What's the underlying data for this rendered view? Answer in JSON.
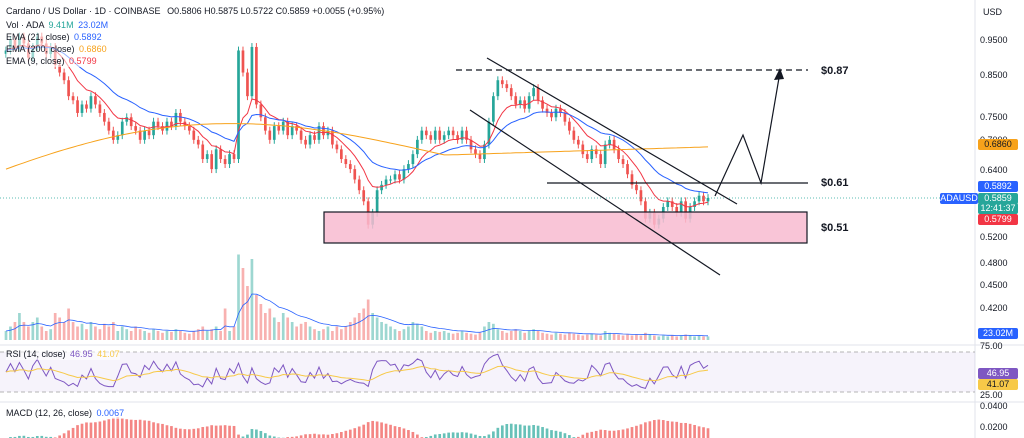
{
  "header": {
    "title": "Cardano / US Dollar · 1D · COINBASE",
    "ohlc": "O0.5806 H0.5875 L0.5722 C0.5859 +0.0055 (+0.95%)",
    "currency": "USD"
  },
  "legends": {
    "vol": {
      "label": "Vol · ADA",
      "v1": "9.41M",
      "v2": "23.02M"
    },
    "ema21": {
      "label": "EMA (21, close)",
      "value": "0.5892"
    },
    "ema200": {
      "label": "EMA (200, close)",
      "value": "0.6860"
    },
    "ema9": {
      "label": "EMA (9, close)",
      "value": "0.5799"
    },
    "rsi": {
      "label": "RSI (14, close)",
      "v1": "46.95",
      "v2": "41.07"
    },
    "macd": {
      "label": "MACD (12, 26, close)",
      "value": "0.0067"
    }
  },
  "price_axis": {
    "ticks": [
      "0.9500",
      "0.8500",
      "0.7500",
      "0.7000",
      "0.6400",
      "0.5200",
      "0.4800",
      "0.4500",
      "0.4200"
    ]
  },
  "price_tags": {
    "ema200": {
      "text": "0.6860",
      "color": "#f7a21b"
    },
    "ema21": {
      "text": "0.5892",
      "color": "#2962ff"
    },
    "symbol": {
      "text": "ADAUSD",
      "color": "#2962ff"
    },
    "last": {
      "text": "0.5859",
      "color": "#26a69a"
    },
    "countdown": {
      "text": "12:41:37",
      "color": "#26a69a"
    },
    "ema9": {
      "text": "0.5799",
      "color": "#f23645"
    },
    "vol": {
      "text": "23.02M",
      "color": "#2962ff"
    }
  },
  "rsi_axis": {
    "ticks": [
      "75.00",
      "25.00"
    ],
    "tags": {
      "rsi": "46.95",
      "ma": "41.07"
    }
  },
  "macd_axis": {
    "ticks": [
      "0.0400",
      "0.0200"
    ]
  },
  "annotations": {
    "level_087": "$0.87",
    "level_061": "$0.61",
    "level_051": "$0.51"
  },
  "chart_data": {
    "type": "candlestick",
    "title": "Cardano / US Dollar · 1D · COINBASE",
    "ylim": [
      0.4,
      1.0
    ],
    "y_scale": "log",
    "last_close": 0.5859,
    "ema200_last": 0.686,
    "ema21_last": 0.5892,
    "ema9_last": 0.5799,
    "close": [
      0.92,
      0.95,
      0.93,
      0.96,
      0.94,
      0.9,
      0.93,
      0.96,
      0.94,
      0.91,
      0.93,
      0.88,
      0.86,
      0.84,
      0.8,
      0.79,
      0.76,
      0.78,
      0.77,
      0.8,
      0.78,
      0.76,
      0.74,
      0.72,
      0.7,
      0.71,
      0.74,
      0.75,
      0.73,
      0.72,
      0.7,
      0.72,
      0.71,
      0.74,
      0.73,
      0.72,
      0.74,
      0.73,
      0.76,
      0.74,
      0.73,
      0.72,
      0.7,
      0.69,
      0.66,
      0.67,
      0.64,
      0.68,
      0.66,
      0.65,
      0.67,
      0.66,
      0.92,
      0.86,
      0.8,
      0.93,
      0.78,
      0.75,
      0.72,
      0.7,
      0.73,
      0.72,
      0.74,
      0.71,
      0.73,
      0.72,
      0.7,
      0.69,
      0.71,
      0.7,
      0.73,
      0.71,
      0.72,
      0.69,
      0.68,
      0.66,
      0.65,
      0.64,
      0.62,
      0.6,
      0.58,
      0.54,
      0.56,
      0.6,
      0.61,
      0.62,
      0.62,
      0.63,
      0.62,
      0.64,
      0.65,
      0.67,
      0.7,
      0.72,
      0.71,
      0.7,
      0.72,
      0.7,
      0.71,
      0.72,
      0.71,
      0.7,
      0.72,
      0.7,
      0.68,
      0.67,
      0.66,
      0.69,
      0.74,
      0.8,
      0.84,
      0.83,
      0.82,
      0.8,
      0.78,
      0.79,
      0.77,
      0.8,
      0.82,
      0.79,
      0.77,
      0.76,
      0.75,
      0.77,
      0.76,
      0.74,
      0.72,
      0.7,
      0.69,
      0.67,
      0.66,
      0.68,
      0.67,
      0.65,
      0.69,
      0.7,
      0.68,
      0.66,
      0.65,
      0.63,
      0.61,
      0.6,
      0.58,
      0.55,
      0.56,
      0.54,
      0.55,
      0.57,
      0.58,
      0.57,
      0.56,
      0.58,
      0.55,
      0.57,
      0.58,
      0.59,
      0.58,
      0.5859
    ],
    "volume_relative": [
      0.1,
      0.15,
      0.2,
      0.3,
      0.2,
      0.15,
      0.2,
      0.25,
      0.15,
      0.1,
      0.12,
      0.3,
      0.25,
      0.2,
      0.35,
      0.2,
      0.15,
      0.18,
      0.12,
      0.2,
      0.15,
      0.12,
      0.18,
      0.15,
      0.2,
      0.1,
      0.15,
      0.12,
      0.1,
      0.15,
      0.12,
      0.1,
      0.08,
      0.12,
      0.1,
      0.08,
      0.1,
      0.09,
      0.12,
      0.1,
      0.08,
      0.07,
      0.1,
      0.12,
      0.15,
      0.1,
      0.12,
      0.15,
      0.1,
      0.35,
      0.1,
      0.15,
      0.95,
      0.8,
      0.6,
      0.9,
      0.5,
      0.4,
      0.3,
      0.35,
      0.25,
      0.2,
      0.3,
      0.25,
      0.2,
      0.15,
      0.18,
      0.2,
      0.15,
      0.12,
      0.1,
      0.12,
      0.15,
      0.1,
      0.15,
      0.12,
      0.15,
      0.2,
      0.25,
      0.3,
      0.35,
      0.45,
      0.3,
      0.25,
      0.2,
      0.18,
      0.15,
      0.12,
      0.1,
      0.12,
      0.15,
      0.2,
      0.18,
      0.15,
      0.1,
      0.08,
      0.1,
      0.09,
      0.1,
      0.08,
      0.07,
      0.08,
      0.1,
      0.08,
      0.07,
      0.06,
      0.08,
      0.15,
      0.2,
      0.18,
      0.12,
      0.1,
      0.08,
      0.1,
      0.12,
      0.1,
      0.08,
      0.1,
      0.12,
      0.1,
      0.08,
      0.07,
      0.06,
      0.08,
      0.07,
      0.06,
      0.08,
      0.07,
      0.06,
      0.05,
      0.06,
      0.07,
      0.06,
      0.05,
      0.1,
      0.08,
      0.07,
      0.06,
      0.05,
      0.06,
      0.05,
      0.06,
      0.05,
      0.08,
      0.06,
      0.05,
      0.04,
      0.05,
      0.04,
      0.05,
      0.04,
      0.05,
      0.06,
      0.05,
      0.04,
      0.05,
      0.04,
      0.04
    ],
    "rsi_range": [
      25,
      75
    ],
    "rsi_last": 46.95,
    "rsi_ma_last": 41.07
  }
}
